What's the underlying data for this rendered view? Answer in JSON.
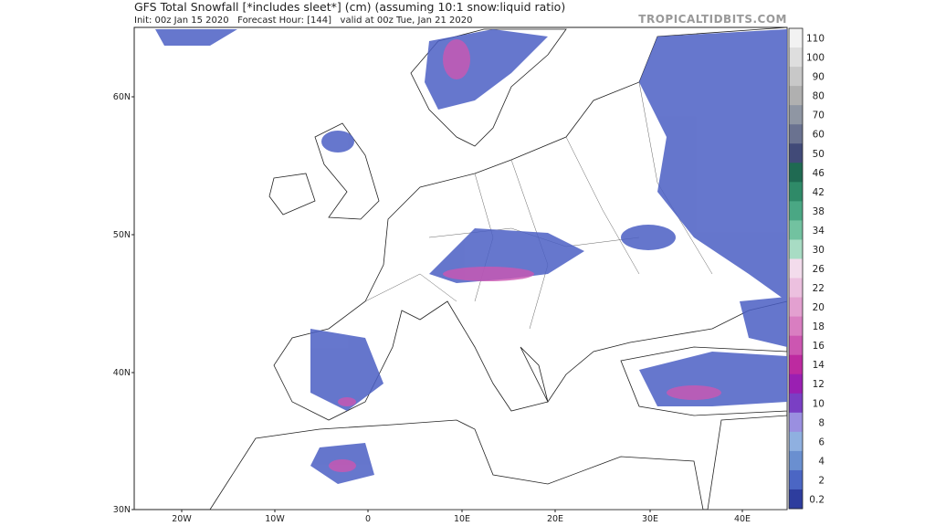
{
  "header": {
    "title": "GFS Total Snowfall [*includes sleet*] (cm) (assuming 10:1 snow:liquid ratio)",
    "subtitle": "Init: 00z Jan 15 2020   Forecast Hour: [144]   valid at 00z Tue, Jan 21 2020",
    "source": "TROPICALTIDBITS.COM"
  },
  "map": {
    "lat_labels": [
      "60N",
      "50N",
      "40N",
      "30N"
    ],
    "lon_labels": [
      "20W",
      "10W",
      "0",
      "10E",
      "20E",
      "30E",
      "40E"
    ]
  },
  "colorbar": {
    "labels": [
      "110",
      "100",
      "90",
      "80",
      "70",
      "60",
      "50",
      "46",
      "42",
      "38",
      "34",
      "30",
      "26",
      "22",
      "20",
      "18",
      "16",
      "14",
      "12",
      "10",
      "8",
      "6",
      "4",
      "2",
      "0.2"
    ],
    "colors": [
      "#f2f2f2",
      "#dedede",
      "#c8c8c8",
      "#b0b0b0",
      "#8f96a3",
      "#6a7290",
      "#414a78",
      "#1f6a52",
      "#2f8a68",
      "#4aa784",
      "#72c2a0",
      "#a8dcc4",
      "#f3dcec",
      "#ecc0df",
      "#e3a0d0",
      "#d97ec1",
      "#cc56b1",
      "#bd2aa0",
      "#9a1fb2",
      "#7a3fc4",
      "#9a8fe0",
      "#8fb0e0",
      "#6a8fd0",
      "#4b66c4",
      "#2e3d9e"
    ]
  }
}
